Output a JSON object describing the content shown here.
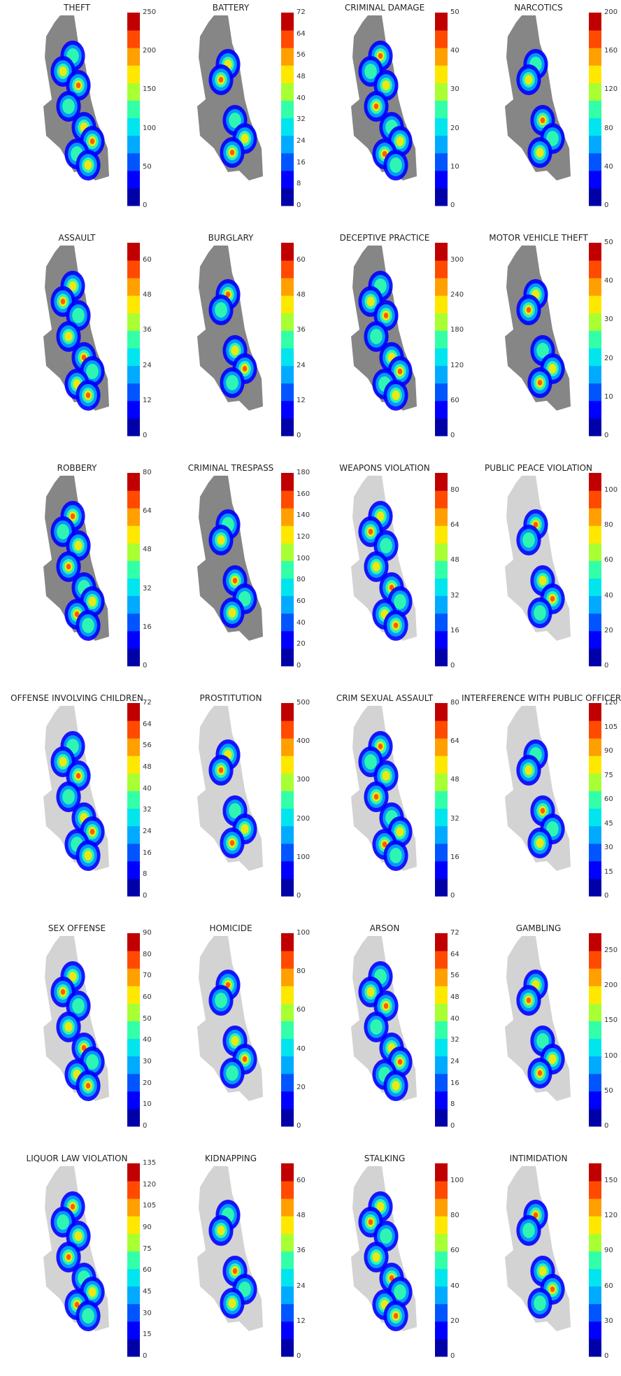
{
  "figure": {
    "colorbar_colors": [
      "#0000a8",
      "#0000ff",
      "#0055ff",
      "#00aaff",
      "#00e5ee",
      "#33ffa8",
      "#a8ff33",
      "#ffe800",
      "#ffa000",
      "#ff4a00",
      "#c00000"
    ],
    "map_outline_color": "#808080"
  },
  "chart_data": [
    {
      "type": "heatmap",
      "title": "THEFT",
      "colorbar_ticks": [
        0,
        50,
        100,
        150,
        200,
        250
      ],
      "ylim": [
        0,
        250
      ],
      "coverage": "full"
    },
    {
      "type": "heatmap",
      "title": "BATTERY",
      "colorbar_ticks": [
        0,
        8,
        16,
        24,
        32,
        40,
        48,
        56,
        64,
        72
      ],
      "ylim": [
        0,
        72
      ],
      "coverage": "full"
    },
    {
      "type": "heatmap",
      "title": "CRIMINAL DAMAGE",
      "colorbar_ticks": [
        0,
        10,
        20,
        30,
        40,
        50
      ],
      "ylim": [
        0,
        50
      ],
      "coverage": "full"
    },
    {
      "type": "heatmap",
      "title": "NARCOTICS",
      "colorbar_ticks": [
        0,
        40,
        80,
        120,
        160,
        200
      ],
      "ylim": [
        0,
        200
      ],
      "coverage": "full"
    },
    {
      "type": "heatmap",
      "title": "ASSAULT",
      "colorbar_ticks": [
        0,
        12,
        24,
        36,
        48,
        60
      ],
      "ylim": [
        0,
        66
      ],
      "coverage": "full"
    },
    {
      "type": "heatmap",
      "title": "BURGLARY",
      "colorbar_ticks": [
        0,
        12,
        24,
        36,
        48,
        60
      ],
      "ylim": [
        0,
        66
      ],
      "coverage": "full"
    },
    {
      "type": "heatmap",
      "title": "DECEPTIVE PRACTICE",
      "colorbar_ticks": [
        0,
        60,
        120,
        180,
        240,
        300
      ],
      "ylim": [
        0,
        330
      ],
      "coverage": "full"
    },
    {
      "type": "heatmap",
      "title": "MOTOR VEHICLE THEFT",
      "colorbar_ticks": [
        0,
        10,
        20,
        30,
        40,
        50
      ],
      "ylim": [
        0,
        50
      ],
      "coverage": "full"
    },
    {
      "type": "heatmap",
      "title": "ROBBERY",
      "colorbar_ticks": [
        0,
        16,
        32,
        48,
        64,
        80
      ],
      "ylim": [
        0,
        80
      ],
      "coverage": "full"
    },
    {
      "type": "heatmap",
      "title": "CRIMINAL TRESPASS",
      "colorbar_ticks": [
        0,
        20,
        40,
        60,
        80,
        100,
        120,
        140,
        160,
        180
      ],
      "ylim": [
        0,
        180
      ],
      "coverage": "full"
    },
    {
      "type": "heatmap",
      "title": "WEAPONS VIOLATION",
      "colorbar_ticks": [
        0,
        16,
        32,
        48,
        64,
        80
      ],
      "ylim": [
        0,
        88
      ],
      "coverage": "sparse"
    },
    {
      "type": "heatmap",
      "title": "PUBLIC PEACE VIOLATION",
      "colorbar_ticks": [
        0,
        20,
        40,
        60,
        80,
        100
      ],
      "ylim": [
        0,
        110
      ],
      "coverage": "sparse"
    },
    {
      "type": "heatmap",
      "title": "OFFENSE INVOLVING CHILDREN",
      "colorbar_ticks": [
        0,
        8,
        16,
        24,
        32,
        40,
        48,
        56,
        64,
        72
      ],
      "ylim": [
        0,
        72
      ],
      "coverage": "sparse"
    },
    {
      "type": "heatmap",
      "title": "PROSTITUTION",
      "colorbar_ticks": [
        0,
        100,
        200,
        300,
        400,
        500
      ],
      "ylim": [
        0,
        500
      ],
      "coverage": "sparse"
    },
    {
      "type": "heatmap",
      "title": "CRIM SEXUAL ASSAULT",
      "colorbar_ticks": [
        0,
        16,
        32,
        48,
        64,
        80
      ],
      "ylim": [
        0,
        80
      ],
      "coverage": "sparse"
    },
    {
      "type": "heatmap",
      "title": "INTERFERENCE WITH PUBLIC OFFICER",
      "colorbar_ticks": [
        0,
        15,
        30,
        45,
        60,
        75,
        90,
        105,
        120
      ],
      "ylim": [
        0,
        120
      ],
      "coverage": "sparse"
    },
    {
      "type": "heatmap",
      "title": "SEX OFFENSE",
      "colorbar_ticks": [
        0,
        10,
        20,
        30,
        40,
        50,
        60,
        70,
        80,
        90
      ],
      "ylim": [
        0,
        90
      ],
      "coverage": "sparse"
    },
    {
      "type": "heatmap",
      "title": "HOMICIDE",
      "colorbar_ticks": [
        0,
        20,
        40,
        60,
        80,
        100
      ],
      "ylim": [
        0,
        100
      ],
      "coverage": "sparse"
    },
    {
      "type": "heatmap",
      "title": "ARSON",
      "colorbar_ticks": [
        0,
        8,
        16,
        24,
        32,
        40,
        48,
        56,
        64,
        72
      ],
      "ylim": [
        0,
        72
      ],
      "coverage": "sparse"
    },
    {
      "type": "heatmap",
      "title": "GAMBLING",
      "colorbar_ticks": [
        0,
        50,
        100,
        150,
        200,
        250
      ],
      "ylim": [
        0,
        275
      ],
      "coverage": "sparse"
    },
    {
      "type": "heatmap",
      "title": "LIQUOR LAW VIOLATION",
      "colorbar_ticks": [
        0,
        15,
        30,
        45,
        60,
        75,
        90,
        105,
        120,
        135
      ],
      "ylim": [
        0,
        135
      ],
      "coverage": "sparse"
    },
    {
      "type": "heatmap",
      "title": "KIDNAPPING",
      "colorbar_ticks": [
        0,
        12,
        24,
        36,
        48,
        60
      ],
      "ylim": [
        0,
        66
      ],
      "coverage": "sparse"
    },
    {
      "type": "heatmap",
      "title": "STALKING",
      "colorbar_ticks": [
        0,
        20,
        40,
        60,
        80,
        100
      ],
      "ylim": [
        0,
        110
      ],
      "coverage": "sparse"
    },
    {
      "type": "heatmap",
      "title": "INTIMIDATION",
      "colorbar_ticks": [
        0,
        30,
        60,
        90,
        120,
        150
      ],
      "ylim": [
        0,
        165
      ],
      "coverage": "sparse"
    }
  ]
}
